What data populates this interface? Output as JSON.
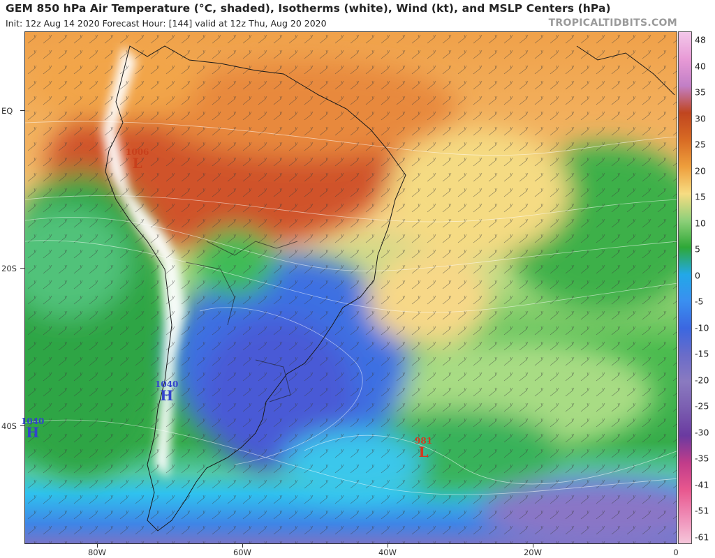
{
  "header": {
    "title": "GEM 850 hPa Air Temperature (°C, shaded), Isotherms (white), Wind (kt), and MSLP Centers (hPa)",
    "subtitle": "Init: 12z Aug 14 2020   Forecast Hour: [144]   valid at 12z Thu, Aug 20 2020",
    "brand": "TROPICALTIDBITS.COM"
  },
  "axes": {
    "lat_labels": [
      {
        "text": "EQ",
        "lat": 0
      },
      {
        "text": "20S",
        "lat": -20
      },
      {
        "text": "40S",
        "lat": -40
      }
    ],
    "lon_labels": [
      {
        "text": "80W",
        "lon": -80
      },
      {
        "text": "60W",
        "lon": -60
      },
      {
        "text": "40W",
        "lon": -40
      },
      {
        "text": "20W",
        "lon": -20
      },
      {
        "text": "0",
        "lon": 0
      }
    ],
    "lat_range": [
      -55,
      10
    ],
    "lon_range": [
      -90,
      0
    ]
  },
  "colorbar": {
    "labels": [
      "48",
      "40",
      "35",
      "30",
      "25",
      "20",
      "15",
      "10",
      "5",
      "0",
      "-5",
      "-10",
      "-15",
      "-20",
      "-25",
      "-30",
      "-35",
      "-41",
      "-51",
      "-61"
    ],
    "colors": [
      "#f3c8ea",
      "#e89ad6",
      "#c27fc6",
      "#c0451f",
      "#d86b24",
      "#ee9e3c",
      "#f7dc82",
      "#8fd07a",
      "#2ea837",
      "#22a8e8",
      "#3a8ff0",
      "#3b67e0",
      "#6a6cc9",
      "#8a7ac0",
      "#7a5db0",
      "#6a3aa0",
      "#c03c8a",
      "#e8578e",
      "#ef8cb6",
      "#f5c6da"
    ]
  },
  "pressure_centers": [
    {
      "type": "H",
      "value": "1040",
      "lat": -36.5,
      "lon": -72.5,
      "color": "#3344cc"
    },
    {
      "type": "H",
      "value": "1040",
      "lat": -41.5,
      "lon": -89.0,
      "color": "#3344cc"
    },
    {
      "type": "L",
      "value": "1006",
      "lat": -6.5,
      "lon": -75.5,
      "color": "#c8401c"
    },
    {
      "type": "L",
      "value": "981",
      "lat": -44.5,
      "lon": -34.5,
      "color": "#d23a1e"
    }
  ]
}
